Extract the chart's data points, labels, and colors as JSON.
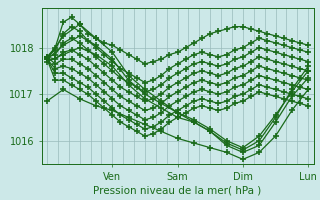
{
  "xlabel": "Pression niveau de la mer( hPa )",
  "background_color": "#cce8e8",
  "plot_bg_color": "#cce8e8",
  "line_color": "#1a6b1a",
  "grid_color": "#99bbbb",
  "tick_color": "#1a6b1a",
  "ylim": [
    1015.5,
    1018.85
  ],
  "xlim": [
    -2,
    98
  ],
  "yticks": [
    1016,
    1017,
    1018
  ],
  "xtick_positions": [
    24,
    48,
    72,
    96
  ],
  "xtick_labels": [
    "Ven",
    "Sam",
    "Dim",
    "Lun"
  ],
  "marker": "+",
  "markersize": 4,
  "linewidth": 0.9,
  "series": [
    {
      "x": [
        0,
        3,
        6,
        9,
        12,
        15,
        18,
        21,
        24,
        27,
        30,
        33,
        36,
        39,
        42,
        45,
        48,
        51,
        54,
        57,
        60,
        63,
        66,
        69,
        72,
        75,
        78,
        81,
        84,
        87,
        90,
        93,
        96
      ],
      "y": [
        1017.8,
        1018.0,
        1018.55,
        1018.65,
        1018.5,
        1018.3,
        1018.2,
        1018.1,
        1018.05,
        1017.95,
        1017.85,
        1017.75,
        1017.65,
        1017.7,
        1017.75,
        1017.85,
        1017.9,
        1018.0,
        1018.1,
        1018.2,
        1018.3,
        1018.35,
        1018.4,
        1018.45,
        1018.45,
        1018.4,
        1018.35,
        1018.3,
        1018.25,
        1018.2,
        1018.15,
        1018.1,
        1018.05
      ]
    },
    {
      "x": [
        0,
        3,
        6,
        9,
        12,
        15,
        18,
        21,
        24,
        27,
        30,
        33,
        36,
        39,
        42,
        45,
        48,
        51,
        54,
        57,
        60,
        63,
        66,
        69,
        72,
        75,
        78,
        81,
        84,
        87,
        90,
        93,
        96
      ],
      "y": [
        1017.8,
        1017.95,
        1018.3,
        1018.45,
        1018.35,
        1018.15,
        1018.0,
        1017.85,
        1017.7,
        1017.55,
        1017.45,
        1017.35,
        1017.25,
        1017.3,
        1017.4,
        1017.55,
        1017.65,
        1017.75,
        1017.85,
        1017.9,
        1017.85,
        1017.8,
        1017.85,
        1017.95,
        1018.0,
        1018.1,
        1018.2,
        1018.15,
        1018.1,
        1018.05,
        1018.0,
        1017.95,
        1017.9
      ]
    },
    {
      "x": [
        0,
        3,
        6,
        9,
        12,
        15,
        18,
        21,
        24,
        27,
        30,
        33,
        36,
        39,
        42,
        45,
        48,
        51,
        54,
        57,
        60,
        63,
        66,
        69,
        72,
        75,
        78,
        81,
        84,
        87,
        90,
        93,
        96
      ],
      "y": [
        1017.8,
        1017.85,
        1018.1,
        1018.2,
        1018.1,
        1017.95,
        1017.8,
        1017.65,
        1017.5,
        1017.35,
        1017.25,
        1017.15,
        1017.05,
        1017.1,
        1017.2,
        1017.35,
        1017.45,
        1017.55,
        1017.65,
        1017.7,
        1017.65,
        1017.6,
        1017.65,
        1017.75,
        1017.8,
        1017.9,
        1018.0,
        1017.95,
        1017.9,
        1017.85,
        1017.8,
        1017.75,
        1017.7
      ]
    },
    {
      "x": [
        0,
        3,
        6,
        9,
        12,
        15,
        18,
        21,
        24,
        27,
        30,
        33,
        36,
        39,
        42,
        45,
        48,
        51,
        54,
        57,
        60,
        63,
        66,
        69,
        72,
        75,
        78,
        81,
        84,
        87,
        90,
        93,
        96
      ],
      "y": [
        1017.8,
        1017.75,
        1017.9,
        1017.95,
        1017.85,
        1017.75,
        1017.6,
        1017.45,
        1017.3,
        1017.15,
        1017.05,
        1016.95,
        1016.85,
        1016.9,
        1017.0,
        1017.15,
        1017.25,
        1017.35,
        1017.45,
        1017.5,
        1017.45,
        1017.4,
        1017.45,
        1017.55,
        1017.6,
        1017.7,
        1017.8,
        1017.75,
        1017.7,
        1017.65,
        1017.6,
        1017.55,
        1017.5
      ]
    },
    {
      "x": [
        0,
        3,
        6,
        9,
        12,
        15,
        18,
        21,
        24,
        27,
        30,
        33,
        36,
        39,
        42,
        45,
        48,
        51,
        54,
        57,
        60,
        63,
        66,
        69,
        72,
        75,
        78,
        81,
        84,
        87,
        90,
        93,
        96
      ],
      "y": [
        1017.8,
        1017.65,
        1017.75,
        1017.75,
        1017.65,
        1017.55,
        1017.4,
        1017.25,
        1017.1,
        1016.95,
        1016.85,
        1016.75,
        1016.65,
        1016.7,
        1016.8,
        1016.95,
        1017.05,
        1017.15,
        1017.25,
        1017.3,
        1017.25,
        1017.2,
        1017.25,
        1017.35,
        1017.4,
        1017.5,
        1017.6,
        1017.55,
        1017.5,
        1017.45,
        1017.4,
        1017.35,
        1017.3
      ]
    },
    {
      "x": [
        0,
        3,
        6,
        9,
        12,
        15,
        18,
        21,
        24,
        27,
        30,
        33,
        36,
        39,
        42,
        45,
        48,
        51,
        54,
        57,
        60,
        63,
        66,
        69,
        72,
        75,
        78,
        81,
        84,
        87,
        90,
        93,
        96
      ],
      "y": [
        1017.75,
        1017.55,
        1017.6,
        1017.55,
        1017.45,
        1017.35,
        1017.2,
        1017.05,
        1016.9,
        1016.75,
        1016.65,
        1016.55,
        1016.45,
        1016.5,
        1016.6,
        1016.75,
        1016.85,
        1016.95,
        1017.05,
        1017.1,
        1017.05,
        1017.0,
        1017.05,
        1017.15,
        1017.2,
        1017.3,
        1017.4,
        1017.35,
        1017.3,
        1017.25,
        1017.2,
        1017.15,
        1017.1
      ]
    },
    {
      "x": [
        0,
        3,
        6,
        9,
        12,
        15,
        18,
        21,
        24,
        27,
        30,
        33,
        36,
        39,
        42,
        45,
        48,
        51,
        54,
        57,
        60,
        63,
        66,
        69,
        72,
        75,
        78,
        81,
        84,
        87,
        90,
        93,
        96
      ],
      "y": [
        1017.75,
        1017.45,
        1017.45,
        1017.35,
        1017.25,
        1017.15,
        1017.0,
        1016.85,
        1016.7,
        1016.55,
        1016.45,
        1016.35,
        1016.25,
        1016.3,
        1016.4,
        1016.55,
        1016.65,
        1016.75,
        1016.85,
        1016.9,
        1016.85,
        1016.8,
        1016.85,
        1016.95,
        1017.0,
        1017.1,
        1017.2,
        1017.15,
        1017.1,
        1017.05,
        1017.0,
        1016.95,
        1016.9
      ]
    },
    {
      "x": [
        0,
        3,
        6,
        9,
        12,
        15,
        18,
        21,
        24,
        27,
        30,
        33,
        36,
        39,
        42,
        45,
        48,
        51,
        54,
        57,
        60,
        63,
        66,
        69,
        72,
        75,
        78,
        81,
        84,
        87,
        90,
        93,
        96
      ],
      "y": [
        1017.75,
        1017.3,
        1017.3,
        1017.2,
        1017.1,
        1017.0,
        1016.85,
        1016.7,
        1016.55,
        1016.4,
        1016.3,
        1016.2,
        1016.1,
        1016.15,
        1016.25,
        1016.4,
        1016.5,
        1016.6,
        1016.7,
        1016.75,
        1016.7,
        1016.65,
        1016.7,
        1016.8,
        1016.85,
        1016.95,
        1017.05,
        1017.0,
        1016.95,
        1016.9,
        1016.85,
        1016.8,
        1016.75
      ]
    },
    {
      "x": [
        0,
        6,
        12,
        18,
        24,
        30,
        36,
        42,
        48,
        54,
        60,
        66,
        72,
        78,
        84,
        90,
        96
      ],
      "y": [
        1017.75,
        1018.25,
        1018.5,
        1018.2,
        1017.9,
        1017.4,
        1017.1,
        1016.85,
        1016.6,
        1016.4,
        1016.2,
        1015.95,
        1015.8,
        1016.0,
        1016.5,
        1017.1,
        1017.6
      ]
    },
    {
      "x": [
        0,
        6,
        12,
        18,
        24,
        30,
        36,
        42,
        48,
        54,
        60,
        66,
        72,
        78,
        84,
        90,
        96
      ],
      "y": [
        1017.75,
        1018.05,
        1018.25,
        1018.05,
        1017.75,
        1017.3,
        1017.0,
        1016.8,
        1016.6,
        1016.45,
        1016.25,
        1016.0,
        1015.85,
        1016.1,
        1016.55,
        1017.05,
        1017.5
      ]
    },
    {
      "x": [
        0,
        6,
        12,
        18,
        24,
        30,
        36,
        42,
        48,
        54,
        60,
        66,
        72,
        78,
        84,
        90,
        96
      ],
      "y": [
        1017.7,
        1017.85,
        1018.0,
        1017.85,
        1017.6,
        1017.2,
        1016.9,
        1016.7,
        1016.5,
        1016.4,
        1016.2,
        1015.9,
        1015.75,
        1015.9,
        1016.4,
        1016.95,
        1017.35
      ]
    },
    {
      "x": [
        0,
        6,
        12,
        18,
        24,
        30,
        36,
        42,
        48,
        54,
        60,
        66,
        72,
        78,
        84,
        90,
        96
      ],
      "y": [
        1016.85,
        1017.1,
        1016.9,
        1016.75,
        1016.65,
        1016.5,
        1016.35,
        1016.2,
        1016.05,
        1015.95,
        1015.85,
        1015.75,
        1015.6,
        1015.75,
        1016.1,
        1016.65,
        1017.1
      ]
    }
  ]
}
